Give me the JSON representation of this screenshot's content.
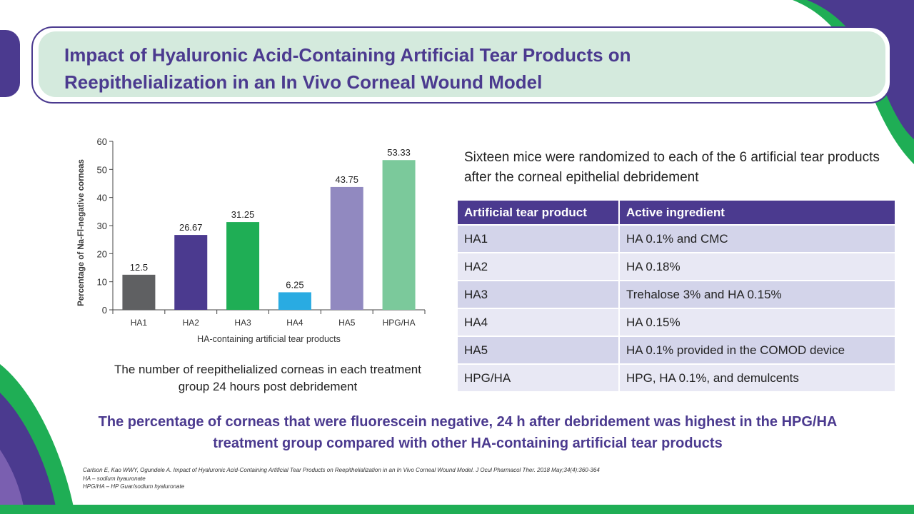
{
  "title": "Impact of Hyaluronic Acid-Containing Artificial Tear Products on Reepithelialization in an In Vivo Corneal Wound Model",
  "chart_caption": "The number of reepithelialized corneas in each treatment group 24 hours post debridement",
  "intro": "Sixteen mice were randomized to each of the 6 artificial tear products after the corneal epithelial debridement",
  "table": {
    "headers": [
      "Artificial tear product",
      "Active ingredient"
    ],
    "rows": [
      [
        "HA1",
        "HA 0.1% and CMC"
      ],
      [
        "HA2",
        "HA 0.18%"
      ],
      [
        "HA3",
        "Trehalose 3% and HA 0.15%"
      ],
      [
        "HA4",
        "HA 0.15%"
      ],
      [
        "HA5",
        "HA 0.1% provided in the COMOD device"
      ],
      [
        "HPG/HA",
        "HPG, HA 0.1%, and demulcents"
      ]
    ]
  },
  "conclusion": "The percentage of corneas that were fluorescein negative, 24 h after debridement was highest in the HPG/HA treatment group compared with other HA-containing artificial tear products",
  "references": [
    "Carlson E, Kao WWY, Ogundele A. Impact of Hyaluronic Acid-Containing Artificial Tear Products on Reepithelialization in an In Vivo Corneal Wound Model. J Ocul Pharmacol Ther. 2018 May;34(4):360-364",
    "HA – sodium hyauronate",
    "HPG/HA – HP Guar/sodium hyaluronate"
  ],
  "colors": {
    "brand_purple": "#4b3a8f",
    "brand_green": "#1fae55",
    "title_bg": "#d4eadd"
  },
  "chart_data": {
    "type": "bar",
    "categories": [
      "HA1",
      "HA2",
      "HA3",
      "HA4",
      "HA5",
      "HPG/HA"
    ],
    "values": [
      12.5,
      26.67,
      31.25,
      6.25,
      43.75,
      53.33
    ],
    "value_labels": [
      "12.5",
      "26.67",
      "31.25",
      "6.25",
      "43.75",
      "53.33"
    ],
    "colors": [
      "#5f6062",
      "#4b3a8f",
      "#1fae55",
      "#29abe2",
      "#9189c0",
      "#7bc99b"
    ],
    "title": "",
    "xlabel": "HA-containing artificial tear products",
    "ylabel": "Percentage of Na-Fl-negative corneas",
    "ylim": [
      0,
      60
    ],
    "yticks": [
      0,
      10,
      20,
      30,
      40,
      50,
      60
    ],
    "grid": false
  }
}
